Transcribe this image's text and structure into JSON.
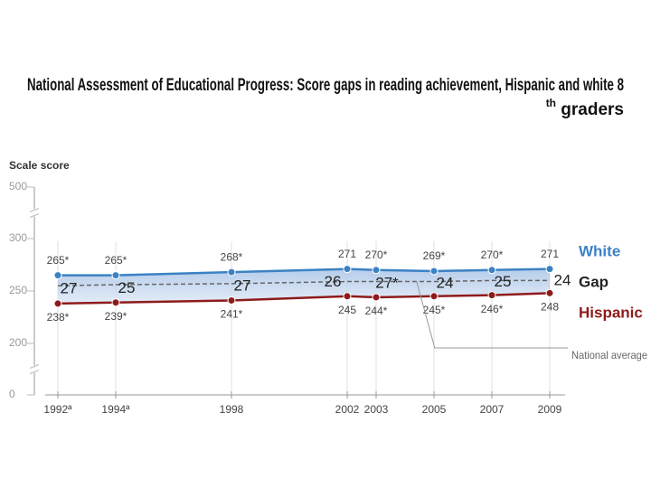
{
  "chart_data": {
    "type": "line",
    "title": {
      "main": "National Assessment of Educational Progress: Score gaps in reading achievement, Hispanic and white 8",
      "sup": "th",
      "end": " graders"
    },
    "y_label": "Scale score",
    "x": [
      1992,
      1994,
      1998,
      2002,
      2003,
      2005,
      2007,
      2009
    ],
    "xlim": [
      1990,
      2010
    ],
    "xticks": [
      {
        "value": 1992,
        "label": "1992ª"
      },
      {
        "value": 1994,
        "label": "1994ª"
      },
      1998,
      2002,
      2003,
      2005,
      2007,
      2009
    ],
    "ylim": [
      0,
      500
    ],
    "yticks": [
      0,
      200,
      250,
      300,
      500
    ],
    "axis_breaks": [
      [
        0,
        200
      ],
      [
        300,
        500
      ]
    ],
    "series": [
      {
        "name": "White",
        "color": "#3b82c4",
        "values": [
          265,
          265,
          268,
          271,
          270,
          269,
          270,
          271
        ],
        "value_labels": [
          "265*",
          "265*",
          "268*",
          "271",
          "270*",
          "269*",
          "270*",
          "271"
        ]
      },
      {
        "name": "Hispanic",
        "color": "#8e1b1b",
        "values": [
          238,
          239,
          241,
          245,
          244,
          245,
          246,
          248
        ],
        "value_labels": [
          "238*",
          "239*",
          "241*",
          "245",
          "244*",
          "245*",
          "246*",
          "248"
        ]
      },
      {
        "name": "National average",
        "color": "#666666",
        "dashed": true,
        "values": [
          255,
          256,
          257,
          259,
          259,
          259,
          260,
          260
        ]
      }
    ],
    "gap": {
      "name": "Gap",
      "color": "#222222",
      "values": [
        27,
        25,
        27,
        26,
        27,
        24,
        25,
        24
      ],
      "value_labels": [
        "27",
        "25",
        "27",
        "26",
        "27*",
        "24",
        "25",
        "24"
      ]
    }
  }
}
